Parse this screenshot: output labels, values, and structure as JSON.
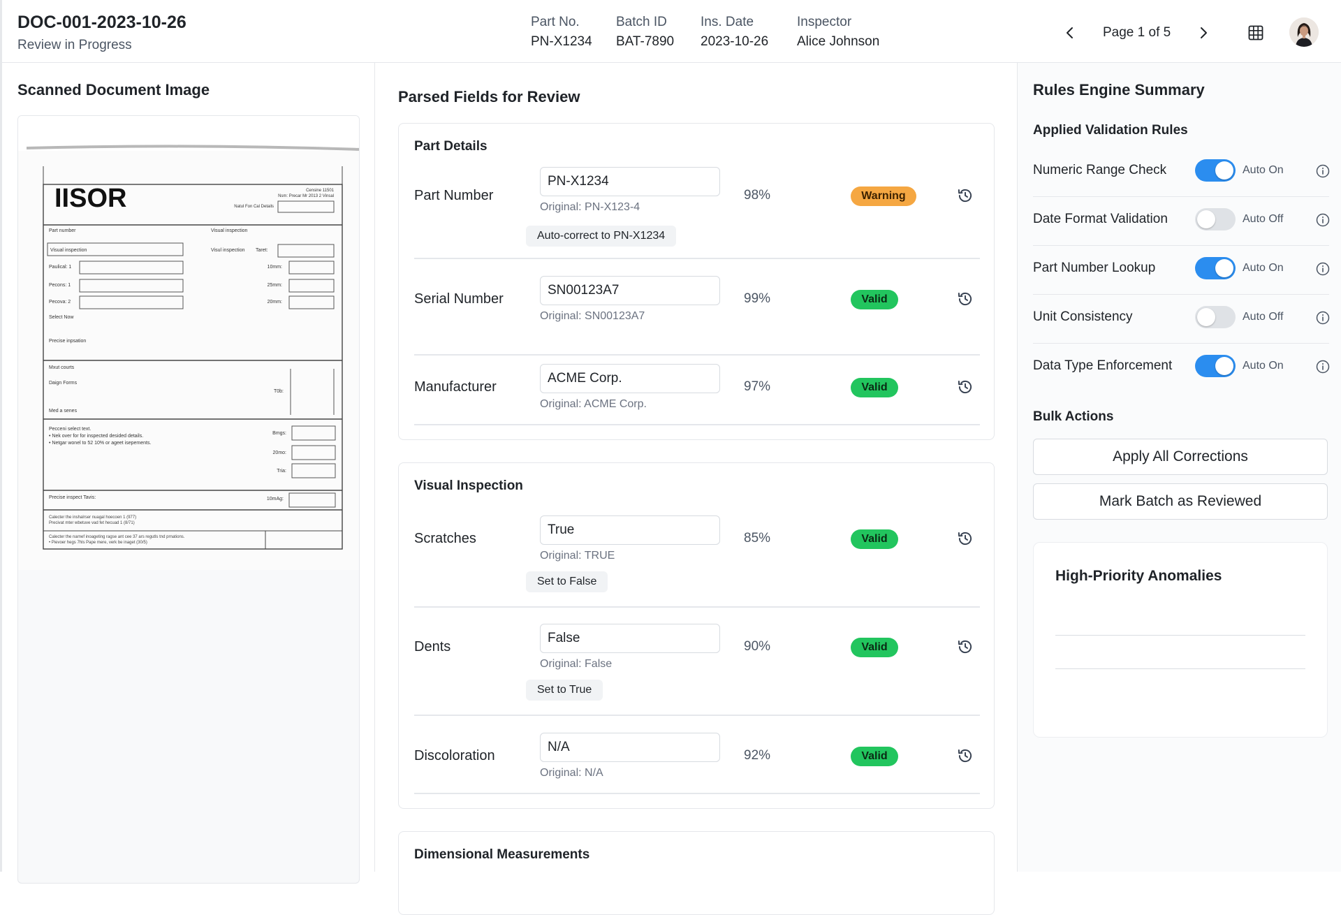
{
  "header": {
    "doc_id": "DOC-001-2023-10-26",
    "status": "Review in Progress",
    "meta": [
      {
        "key": "Part No.",
        "value": "PN-X1234"
      },
      {
        "key": "Batch ID",
        "value": "BAT-7890"
      },
      {
        "key": "Ins. Date",
        "value": "2023-10-26"
      },
      {
        "key": "Inspector",
        "value": "Alice Johnson"
      }
    ],
    "pager_label": "Page 1 of 5",
    "icons": {
      "prev": "chevron-left-icon",
      "next": "chevron-right-icon",
      "grid": "grid-icon",
      "avatar": "user-avatar"
    }
  },
  "left": {
    "title": "Scanned Document Image",
    "scan": {
      "heading": "IISOR",
      "top_right": [
        "Censine 11501",
        "Nsm: Precar Mr 2013 2 Vinsal",
        "Natul Fon Cal Details"
      ],
      "fields_left": [
        "Part number",
        "Visual inspection",
        "Paulical: 1",
        "Pecons: 1",
        "Pecova: 2",
        "Select Now",
        "Precise inpsation"
      ],
      "fields_right": [
        "Visual inspection",
        "Visul inspection",
        "Taret:",
        "10mm:",
        "25mm:",
        "20mm:"
      ],
      "section2": [
        "Mxut courts",
        "Daign Forms",
        "Med a senes",
        "T0b:"
      ],
      "section3": [
        "Pecceni select text.",
        "• Nek over for for inspected desided details.",
        "• Netgar wonel to 52 10% or ageet isepements."
      ],
      "section3_right": [
        "Bmgs:",
        "20mo:",
        "Tria:"
      ],
      "section4": [
        "Precise inspect Tavis:",
        "10mAg:"
      ],
      "footer": [
        "Calecter the inshalrser nuagal hoecoen 1 (977)",
        "Precivat mter wbetuve vad fet hecuad 1 (8/71)",
        "Calecter the narnef inoageting ragse ant cee 37 ars regutls tnd prnations.",
        "• Pievoer hegs 7hls Pape mere, verk be inaget (30/5)"
      ]
    }
  },
  "middle": {
    "title": "Parsed Fields for Review",
    "sections": [
      {
        "title": "Part Details",
        "rows": [
          {
            "label": "Part Number",
            "value": "PN-X1234",
            "original": "Original: PN-X123-4",
            "confidence": "98%",
            "status": "Warning",
            "suggestion": "Auto-correct to PN-X1234"
          },
          {
            "label": "Serial Number",
            "value": "SN00123A7",
            "original": "Original: SN00123A7",
            "confidence": "99%",
            "status": "Valid"
          },
          {
            "label": "Manufacturer",
            "value": "ACME Corp.",
            "original": "Original: ACME Corp.",
            "confidence": "97%",
            "status": "Valid"
          }
        ]
      },
      {
        "title": "Visual Inspection",
        "rows": [
          {
            "label": "Scratches",
            "value": "True",
            "original": "Original: TRUE",
            "confidence": "85%",
            "status": "Valid",
            "suggestion": "Set to False"
          },
          {
            "label": "Dents",
            "value": "False",
            "original": "Original: False",
            "confidence": "90%",
            "status": "Valid",
            "suggestion": "Set to True"
          },
          {
            "label": "Discoloration",
            "value": "N/A",
            "original": "Original: N/A",
            "confidence": "92%",
            "status": "Valid"
          }
        ]
      },
      {
        "title": "Dimensional Measurements",
        "rows": []
      }
    ],
    "history_icon": "history-icon"
  },
  "right": {
    "title": "Rules Engine Summary",
    "rules_heading": "Applied Validation Rules",
    "rules": [
      {
        "name": "Numeric Range Check",
        "on": true,
        "state": "Auto On"
      },
      {
        "name": "Date Format Validation",
        "on": false,
        "state": "Auto Off"
      },
      {
        "name": "Part Number Lookup",
        "on": true,
        "state": "Auto On"
      },
      {
        "name": "Unit Consistency",
        "on": false,
        "state": "Auto Off"
      },
      {
        "name": "Data Type Enforcement",
        "on": true,
        "state": "Auto On"
      }
    ],
    "bulk_heading": "Bulk Actions",
    "bulk_actions": [
      "Apply All Corrections",
      "Mark Batch as Reviewed"
    ],
    "anomalies_title": "High-Priority Anomalies",
    "colors": {
      "toggle_on": "#2b8def",
      "valid": "#22c55e",
      "warning": "#f5a742"
    }
  }
}
